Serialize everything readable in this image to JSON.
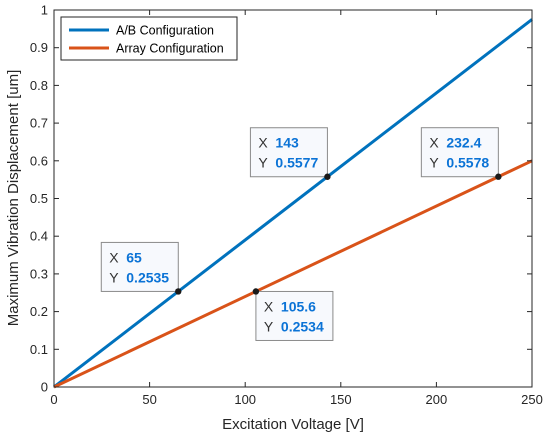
{
  "chart_data": {
    "type": "line",
    "xlabel": "Excitation Voltage [V]",
    "ylabel": "Maximum Vibration Displacement [um]",
    "xlim": [
      0,
      250
    ],
    "ylim": [
      0,
      1
    ],
    "xticks": [
      0,
      50,
      100,
      150,
      200,
      250
    ],
    "yticks": [
      0,
      0.1,
      0.2,
      0.3,
      0.4,
      0.5,
      0.6,
      0.7,
      0.8,
      0.9,
      1
    ],
    "grid": false,
    "legend_position": "top-left",
    "series": [
      {
        "name": "A/B Configuration",
        "color": "#0072bd",
        "x": [
          0,
          250
        ],
        "y": [
          0,
          0.975
        ]
      },
      {
        "name": "Array Configuration",
        "color": "#d95319",
        "x": [
          0,
          250
        ],
        "y": [
          0,
          0.6
        ]
      }
    ],
    "datatips": [
      {
        "x_label": "X",
        "y_label": "Y",
        "x": "65",
        "y": "0.2535",
        "series": 0,
        "placement": "above-left"
      },
      {
        "x_label": "X",
        "y_label": "Y",
        "x": "143",
        "y": "0.5577",
        "series": 0,
        "placement": "above-left"
      },
      {
        "x_label": "X",
        "y_label": "Y",
        "x": "105.6",
        "y": "0.2534",
        "series": 1,
        "placement": "below-right"
      },
      {
        "x_label": "X",
        "y_label": "Y",
        "x": "232.4",
        "y": "0.5578",
        "series": 1,
        "placement": "above-left"
      }
    ]
  }
}
